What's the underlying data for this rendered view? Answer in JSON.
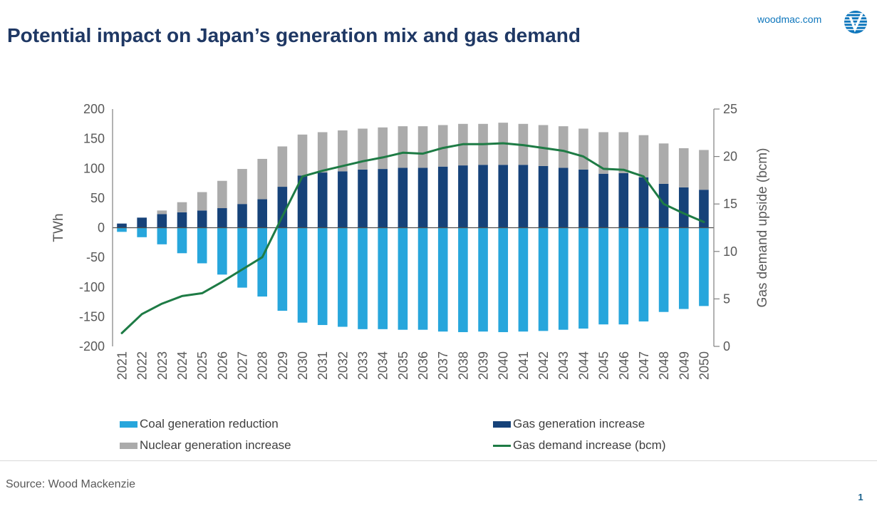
{
  "header": {
    "title": "Potential impact on Japan’s generation mix and gas demand",
    "site": "woodmac.com",
    "logo_icon": "verisk-globe-icon",
    "title_color": "#1F3864",
    "link_color": "#0E76BC"
  },
  "chart_data": {
    "type": "bar+line",
    "categories": [
      "2021",
      "2022",
      "2023",
      "2024",
      "2025",
      "2026",
      "2027",
      "2028",
      "2029",
      "2030",
      "2031",
      "2032",
      "2033",
      "2034",
      "2035",
      "2036",
      "2037",
      "2038",
      "2039",
      "2040",
      "2041",
      "2042",
      "2043",
      "2044",
      "2045",
      "2046",
      "2047",
      "2048",
      "2049",
      "2050"
    ],
    "series": [
      {
        "name": "Gas generation increase",
        "type": "bar",
        "stack": "positive",
        "axis": "left",
        "color": "#164279",
        "values": [
          7,
          17,
          23,
          26,
          29,
          33,
          40,
          48,
          69,
          88,
          93,
          95,
          98,
          99,
          101,
          101,
          103,
          105,
          106,
          106,
          106,
          104,
          101,
          98,
          91,
          92,
          85,
          74,
          68,
          64
        ]
      },
      {
        "name": "Nuclear generation increase",
        "type": "bar",
        "stack": "positive",
        "axis": "left",
        "color": "#ABABAB",
        "values": [
          0,
          0,
          6,
          17,
          31,
          46,
          59,
          68,
          68,
          69,
          68,
          69,
          69,
          70,
          70,
          70,
          70,
          70,
          69,
          71,
          69,
          69,
          70,
          69,
          70,
          69,
          71,
          68,
          66,
          67
        ]
      },
      {
        "name": "Coal generation reduction",
        "type": "bar",
        "stack": "negative",
        "axis": "left",
        "color": "#27A6DC",
        "values": [
          -7,
          -16,
          -28,
          -43,
          -60,
          -79,
          -101,
          -116,
          -140,
          -160,
          -164,
          -167,
          -171,
          -171,
          -172,
          -172,
          -175,
          -176,
          -175,
          -176,
          -175,
          -174,
          -172,
          -170,
          -163,
          -163,
          -158,
          -142,
          -137,
          -132
        ]
      },
      {
        "name": "Gas demand increase (bcm)",
        "type": "line",
        "axis": "right",
        "color": "#1E7B45",
        "values": [
          1.4,
          3.4,
          4.5,
          5.3,
          5.6,
          6.8,
          8.1,
          9.4,
          13.7,
          17.9,
          18.5,
          19.0,
          19.5,
          19.9,
          20.4,
          20.3,
          20.9,
          21.3,
          21.3,
          21.4,
          21.2,
          20.9,
          20.6,
          20.0,
          18.7,
          18.6,
          17.9,
          15.0,
          14.0,
          13.1
        ]
      }
    ],
    "left_axis": {
      "label": "TWh",
      "min": -200,
      "max": 200,
      "ticks": [
        200,
        150,
        100,
        50,
        0,
        -50,
        -100,
        -150,
        -200
      ]
    },
    "right_axis": {
      "label": "Gas demand upside (bcm)",
      "min": 0,
      "max": 25,
      "ticks": [
        25,
        20,
        15,
        10,
        5,
        0
      ]
    },
    "grid": false,
    "legend_position": "bottom",
    "axis_text_color": "#595959"
  },
  "legend": {
    "items": [
      {
        "label": "Coal generation reduction",
        "swatch": "bar",
        "color": "#27A6DC"
      },
      {
        "label": "Gas generation increase",
        "swatch": "bar",
        "color": "#164279"
      },
      {
        "label": "Nuclear generation increase",
        "swatch": "bar",
        "color": "#ABABAB"
      },
      {
        "label": "Gas demand increase (bcm)",
        "swatch": "line",
        "color": "#1E7B45"
      }
    ]
  },
  "footer": {
    "source": "Source: Wood Mackenzie",
    "page": "1"
  }
}
